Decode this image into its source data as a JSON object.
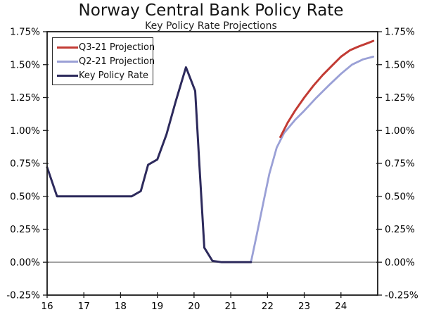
{
  "page": {
    "title": "Norway Central Bank Policy Rate",
    "subtitle": "Key Policy Rate Projections"
  },
  "colors": {
    "q3_projection": "#c23b34",
    "q2_projection": "#9aa0d6",
    "key_policy_rate": "#2d2a5c",
    "zero_line": "#8f8f8f",
    "axis": "#1a1a1a",
    "text": "#000000",
    "background": "#ffffff"
  },
  "legend": {
    "items": [
      {
        "label": "Q3-21 Projection",
        "color": "#c23b34"
      },
      {
        "label": "Q2-21 Projection",
        "color": "#9aa0d6"
      },
      {
        "label": "Key Policy Rate",
        "color": "#2d2a5c"
      }
    ]
  },
  "chart_data": {
    "type": "line",
    "title": "Norway Central Bank Policy Rate",
    "subtitle": "Key Policy Rate Projections",
    "xlabel": "",
    "ylabel": "",
    "xlim": [
      16,
      25
    ],
    "ylim": [
      -0.25,
      1.75
    ],
    "x_ticks": [
      16,
      17,
      18,
      19,
      20,
      21,
      22,
      23,
      24
    ],
    "y_ticks": [
      1.75,
      1.5,
      1.25,
      1.0,
      0.75,
      0.5,
      0.25,
      0.0,
      -0.25
    ],
    "y_tick_labels": [
      "1.75%",
      "1.50%",
      "1.25%",
      "1.00%",
      "0.75%",
      "0.50%",
      "0.25%",
      "0.00%",
      "-0.25%"
    ],
    "grid": "zero-line-only",
    "legend_position": "top-left",
    "axes_mirrored": true,
    "series": [
      {
        "name": "Q2-21 Projection",
        "color": "#9aa0d6",
        "width": 2.8,
        "points": [
          [
            21.55,
            0.0
          ],
          [
            21.7,
            0.2
          ],
          [
            21.9,
            0.47
          ],
          [
            22.05,
            0.67
          ],
          [
            22.25,
            0.87
          ],
          [
            22.45,
            0.98
          ],
          [
            22.75,
            1.08
          ],
          [
            23.0,
            1.15
          ],
          [
            23.3,
            1.24
          ],
          [
            23.66,
            1.34
          ],
          [
            24.0,
            1.43
          ],
          [
            24.3,
            1.5
          ],
          [
            24.6,
            1.54
          ],
          [
            24.88,
            1.56
          ]
        ]
      },
      {
        "name": "Q3-21 Projection",
        "color": "#c23b34",
        "width": 3,
        "points": [
          [
            22.35,
            0.95
          ],
          [
            22.55,
            1.06
          ],
          [
            22.75,
            1.15
          ],
          [
            23.0,
            1.25
          ],
          [
            23.25,
            1.34
          ],
          [
            23.5,
            1.42
          ],
          [
            23.75,
            1.49
          ],
          [
            24.0,
            1.56
          ],
          [
            24.25,
            1.61
          ],
          [
            24.5,
            1.64
          ],
          [
            24.7,
            1.66
          ],
          [
            24.88,
            1.68
          ]
        ]
      },
      {
        "name": "Key Policy Rate",
        "color": "#2d2a5c",
        "width": 3,
        "points": [
          [
            16.0,
            0.72
          ],
          [
            16.27,
            0.5
          ],
          [
            17.0,
            0.5
          ],
          [
            17.5,
            0.5
          ],
          [
            18.0,
            0.5
          ],
          [
            18.3,
            0.5
          ],
          [
            18.55,
            0.54
          ],
          [
            18.75,
            0.74
          ],
          [
            19.0,
            0.78
          ],
          [
            19.25,
            0.97
          ],
          [
            19.5,
            1.22
          ],
          [
            19.78,
            1.48
          ],
          [
            19.92,
            1.38
          ],
          [
            20.03,
            1.3
          ],
          [
            20.15,
            0.72
          ],
          [
            20.28,
            0.11
          ],
          [
            20.5,
            0.01
          ],
          [
            20.75,
            0.0
          ],
          [
            21.0,
            0.0
          ],
          [
            21.25,
            0.0
          ],
          [
            21.55,
            0.0
          ]
        ]
      }
    ]
  }
}
